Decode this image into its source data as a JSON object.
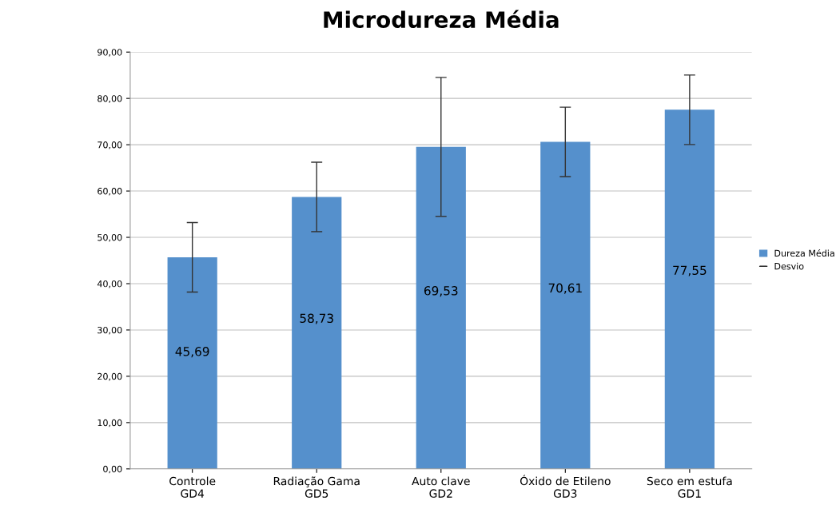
{
  "chart_data": {
    "type": "bar",
    "title": "Microdureza Média",
    "categories": [
      "Controle\nGD4",
      "Radiação Gama\nGD5",
      "Auto clave\nGD2",
      "Óxido de Etileno\nGD3",
      "Seco em estufa\nGD1"
    ],
    "series": [
      {
        "name": "Dureza Média",
        "color": "#5590cc",
        "values": [
          45.69,
          58.73,
          69.53,
          70.61,
          77.55
        ],
        "errors": [
          7.5,
          7.5,
          15,
          7.5,
          7.5
        ],
        "value_labels": [
          "45,69",
          "58,73",
          "69,53",
          "70,61",
          "77,55"
        ]
      }
    ],
    "annotations": [
      "Desvio"
    ],
    "ylim": [
      0,
      90
    ],
    "yticks": [
      {
        "value": 0,
        "label": "0,00"
      },
      {
        "value": 10,
        "label": "10,00"
      },
      {
        "value": 20,
        "label": "20,00"
      },
      {
        "value": 30,
        "label": "30,00"
      },
      {
        "value": 40,
        "label": "40,00"
      },
      {
        "value": 50,
        "label": "50,00"
      },
      {
        "value": 60,
        "label": "60,00"
      },
      {
        "value": 70,
        "label": "70,00"
      },
      {
        "value": 80,
        "label": "80,00"
      },
      {
        "value": 90,
        "label": "90,00"
      }
    ],
    "grid": "y",
    "legend": "right"
  }
}
